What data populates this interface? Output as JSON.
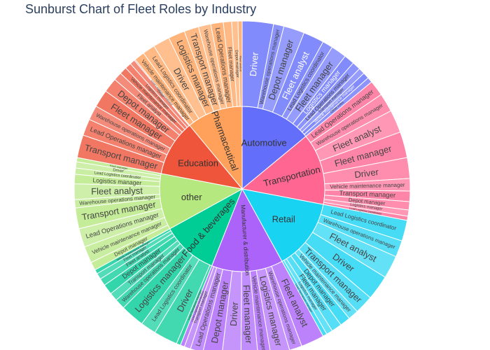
{
  "chart_data": {
    "type": "sunburst",
    "title": "Sunburst Chart of Fleet Roles by Industry",
    "industries": [
      {
        "name": "Automotive",
        "value": 14,
        "color": "#636efa",
        "children": [
          {
            "name": "Driver",
            "value": 3.0
          },
          {
            "name": "Warehouse operations manager",
            "value": 1.0
          },
          {
            "name": "Depot manager",
            "value": 2.0
          },
          {
            "name": "Fleet analyst",
            "value": 2.0
          },
          {
            "name": "Lead Logistics coordinator",
            "value": 1.0
          },
          {
            "name": "Fleet manager",
            "value": 1.5
          },
          {
            "name": "Logistics manager",
            "value": 1.0
          },
          {
            "name": "Lead Operations manager",
            "value": 0.8
          },
          {
            "name": "Transport manager",
            "value": 0.6
          },
          {
            "name": "Vehicle maintenance manager",
            "value": 0.6
          },
          {
            "name": "Other roles",
            "value": 0.5
          }
        ]
      },
      {
        "name": "Transportation",
        "value": 14,
        "color": "#ff6692",
        "children": [
          {
            "name": "Lead Operations manager",
            "value": 1.5
          },
          {
            "name": "Warehouse operations manager",
            "value": 1.8
          },
          {
            "name": "Fleet analyst",
            "value": 2.2
          },
          {
            "name": "Fleet manager",
            "value": 2.5
          },
          {
            "name": "Driver",
            "value": 2.0
          },
          {
            "name": "Vehicle maintenance manager",
            "value": 1.2
          },
          {
            "name": "Transport manager",
            "value": 1.0
          },
          {
            "name": "Depot manager",
            "value": 0.8
          },
          {
            "name": "Logistics manager",
            "value": 0.6
          },
          {
            "name": "Lead Logistics coordinator",
            "value": 0.4
          }
        ]
      },
      {
        "name": "Retail",
        "value": 14,
        "color": "#19d3f3",
        "children": [
          {
            "name": "Lead Logistics coordinator",
            "value": 2.0
          },
          {
            "name": "Warehouse operations manager",
            "value": 1.6
          },
          {
            "name": "Fleet analyst",
            "value": 2.2
          },
          {
            "name": "Driver",
            "value": 2.4
          },
          {
            "name": "Transport manager",
            "value": 1.8
          },
          {
            "name": "Vehicle maintenance manager",
            "value": 1.0
          },
          {
            "name": "Depot manager",
            "value": 1.0
          },
          {
            "name": "Fleet manager",
            "value": 1.0
          },
          {
            "name": "Logistics manager",
            "value": 0.6
          },
          {
            "name": "Lead Operations manager",
            "value": 0.4
          }
        ]
      },
      {
        "name": "Manufacturer & distribution",
        "value": 14,
        "color": "#ab63fa",
        "children": [
          {
            "name": "Fleet analyst",
            "value": 2.2
          },
          {
            "name": "Warehouse operations manager",
            "value": 1.2
          },
          {
            "name": "Logistics manager",
            "value": 1.8
          },
          {
            "name": "Vehicle maintenance manager",
            "value": 1.2
          },
          {
            "name": "Fleet manager",
            "value": 1.6
          },
          {
            "name": "Driver",
            "value": 1.8
          },
          {
            "name": "Depot manager",
            "value": 1.8
          },
          {
            "name": "Lead Operations manager",
            "value": 1.2
          },
          {
            "name": "Transport manager",
            "value": 0.6
          },
          {
            "name": "Lead Logistics coordinator",
            "value": 0.4
          }
        ]
      },
      {
        "name": "Food & beverages",
        "value": 11,
        "color": "#00cc96",
        "children": [
          {
            "name": "Lead Operations manager",
            "value": 0.4
          },
          {
            "name": "Driver",
            "value": 2.3
          },
          {
            "name": "Lead Logistics coordinator",
            "value": 1.5
          },
          {
            "name": "Logistics manager",
            "value": 2.3
          },
          {
            "name": "Warehouse operations manager",
            "value": 1.0
          },
          {
            "name": "Transport manager",
            "value": 0.8
          },
          {
            "name": "Depot manager",
            "value": 1.0
          },
          {
            "name": "Fleet analyst",
            "value": 0.7
          },
          {
            "name": "Fleet manager",
            "value": 0.6
          },
          {
            "name": "Vehicle maintenance manager",
            "value": 0.4
          }
        ]
      },
      {
        "name": "other",
        "value": 11,
        "color": "#b6e880",
        "children": [
          {
            "name": "Depot manager",
            "value": 0.8
          },
          {
            "name": "Vehicle maintenance manager",
            "value": 1.6
          },
          {
            "name": "Lead Operations manager",
            "value": 1.8
          },
          {
            "name": "Transport manager",
            "value": 2.0
          },
          {
            "name": "Warehouse operations manager",
            "value": 0.8
          },
          {
            "name": "Fleet analyst",
            "value": 1.5
          },
          {
            "name": "Logistics manager",
            "value": 0.9
          },
          {
            "name": "Lead Logistics coordinator",
            "value": 0.6
          },
          {
            "name": "Driver",
            "value": 0.6
          },
          {
            "name": "Fleet manager",
            "value": 0.4
          }
        ]
      },
      {
        "name": "Education",
        "value": 11,
        "color": "#ef553b",
        "children": [
          {
            "name": "Transport manager",
            "value": 2.2
          },
          {
            "name": "Lead Operations manager",
            "value": 1.6
          },
          {
            "name": "Warehouse operations manager",
            "value": 1.4
          },
          {
            "name": "Fleet manager",
            "value": 1.7
          },
          {
            "name": "Depot manager",
            "value": 1.4
          },
          {
            "name": "Fleet analyst",
            "value": 0.8
          },
          {
            "name": "Vehicle maintenance manager",
            "value": 0.7
          },
          {
            "name": "Logistics manager",
            "value": 0.6
          },
          {
            "name": "Driver",
            "value": 0.5
          },
          {
            "name": "Lead Logistics coordinator",
            "value": 0.1
          }
        ]
      },
      {
        "name": "Pharmaceutical",
        "value": 11,
        "color": "#ffa15a",
        "children": [
          {
            "name": "Vehicle maintenance manager",
            "value": 1.0
          },
          {
            "name": "Lead Logistics coordinator",
            "value": 1.2
          },
          {
            "name": "Driver",
            "value": 1.6
          },
          {
            "name": "Logistics manager",
            "value": 1.6
          },
          {
            "name": "Transport manager",
            "value": 1.4
          },
          {
            "name": "Warehouse operations manager",
            "value": 1.2
          },
          {
            "name": "Lead Operations manager",
            "value": 1.2
          },
          {
            "name": "Fleet manager",
            "value": 0.8
          },
          {
            "name": "Depot manager",
            "value": 0.6
          },
          {
            "name": "Fleet analyst",
            "value": 0.4
          }
        ]
      }
    ]
  }
}
